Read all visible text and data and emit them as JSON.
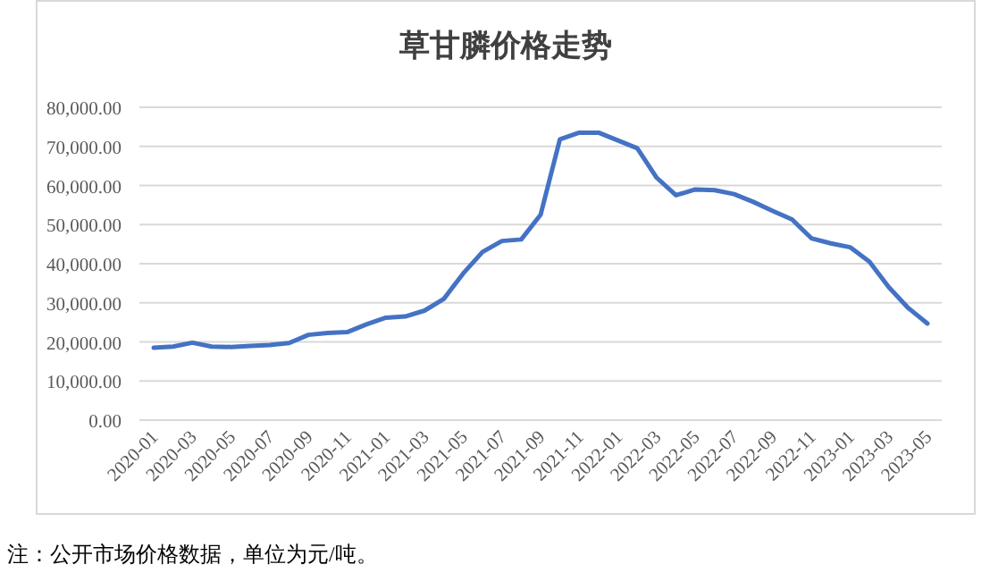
{
  "chart_data": {
    "type": "line",
    "title": "草甘膦价格走势",
    "categories": [
      "2020-01",
      null,
      "2020-03",
      null,
      "2020-05",
      null,
      "2020-07",
      null,
      "2020-09",
      null,
      "2020-11",
      null,
      "2021-01",
      null,
      "2021-03",
      null,
      "2021-05",
      null,
      "2021-07",
      null,
      "2021-09",
      null,
      "2021-11",
      null,
      "2022-01",
      null,
      "2022-03",
      null,
      "2022-05",
      null,
      "2022-07",
      null,
      "2022-09",
      null,
      "2022-11",
      null,
      "2023-01",
      null,
      "2023-03",
      null,
      "2023-05"
    ],
    "series": [
      {
        "color": "#4472c4",
        "values": [
          18500,
          18800,
          19800,
          18800,
          18700,
          19000,
          19200,
          19700,
          21800,
          22300,
          22500,
          24500,
          26200,
          26500,
          28000,
          31000,
          37500,
          43000,
          45800,
          46200,
          52500,
          71800,
          73500,
          73500,
          71500,
          69500,
          62000,
          57500,
          59000,
          58800,
          57800,
          55800,
          53500,
          51300,
          46500,
          45200,
          44200,
          40500,
          34000,
          28700,
          24700
        ]
      }
    ],
    "ylim": [
      0,
      80000
    ],
    "yticks": [
      {
        "value": 0,
        "label": "0.00"
      },
      {
        "value": 10000,
        "label": "10,000.00"
      },
      {
        "value": 20000,
        "label": "20,000.00"
      },
      {
        "value": 30000,
        "label": "30,000.00"
      },
      {
        "value": 40000,
        "label": "40,000.00"
      },
      {
        "value": 50000,
        "label": "50,000.00"
      },
      {
        "value": 60000,
        "label": "60,000.00"
      },
      {
        "value": 70000,
        "label": "70,000.00"
      },
      {
        "value": 80000,
        "label": "80,000.00"
      }
    ],
    "grid": "y",
    "marker": "none",
    "line_style": "solid",
    "annotations": [
      "注：公开市场价格数据，单位为元/吨。"
    ]
  }
}
